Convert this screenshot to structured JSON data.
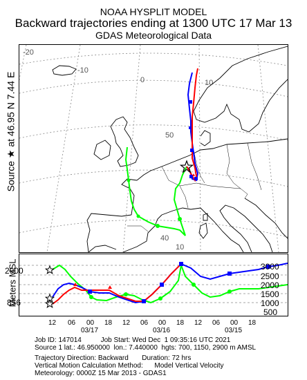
{
  "header": {
    "line1": "NOAA HYSPLIT MODEL",
    "line2": "Backward trajectories ending at 1300 UTC 17 Mar 13",
    "line3": "GDAS Meteorological Data"
  },
  "side_label": "Source ★ at   46.95 N    7.44 E",
  "vertical_axis_label": "Meters MSL",
  "map_grid_labels": [
    "-20",
    "-10",
    "0",
    "10",
    "50",
    "40",
    "10"
  ],
  "trajectories": [
    {
      "height_m_amsl": 700,
      "color": "#ff0000"
    },
    {
      "height_m_amsl": 1150,
      "color": "#0000ff"
    },
    {
      "height_m_amsl": 2900,
      "color": "#00ff00"
    }
  ],
  "vertical_profile": {
    "left_labels": [
      "2900",
      "856"
    ],
    "right_labels": [
      "3000",
      "2500",
      "2000",
      "1500",
      "1000",
      "500"
    ],
    "time_ticks": [
      "12",
      "06",
      "00",
      "18",
      "12",
      "06",
      "00",
      "18",
      "12",
      "06",
      "00",
      "18"
    ],
    "date_ticks": [
      "03/17",
      "03/16",
      "03/15"
    ]
  },
  "footer": {
    "line1": "Job ID: 147014          Job Start: Wed Dec  1 09:35:16 UTC 2021",
    "line2": "Source 1 lat.: 46.950000  lon.: 7.440000  hgts: 700, 1150, 2900 m AMSL",
    "line3": "Trajectory Direction: Backward       Duration: 72 hrs",
    "line4": "Vertical Motion Calculation Method:      Model Vertical Velocity",
    "line5": "Meteorology: 0000Z 15 Mar 2013 - GDAS1"
  },
  "colors": {
    "red": "#ff0000",
    "blue": "#0000ff",
    "green": "#00ff00",
    "grid": "#888888"
  }
}
